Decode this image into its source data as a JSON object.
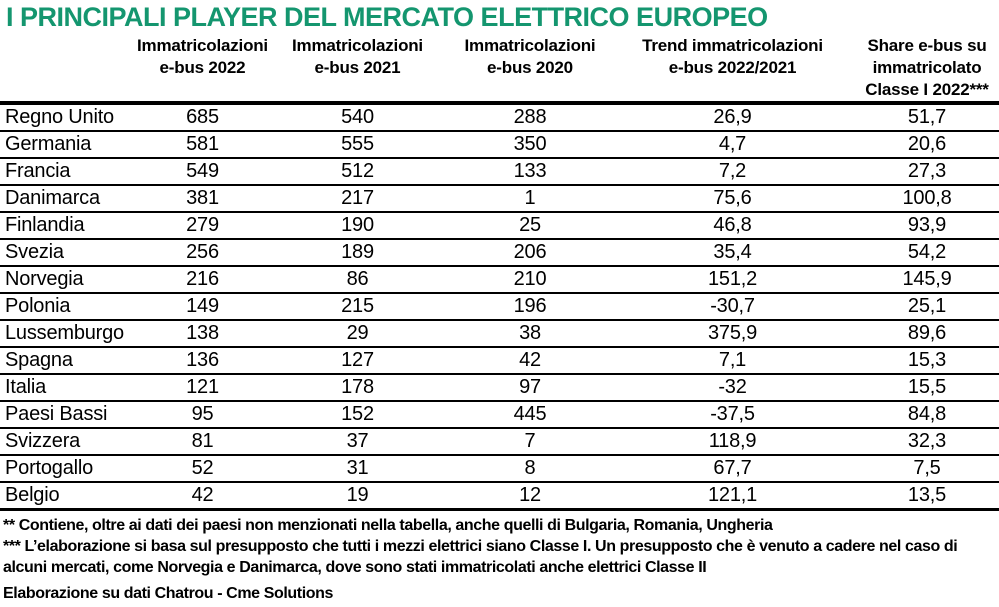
{
  "title": "I PRINCIPALI PLAYER DEL MERCATO ELETTRICO EUROPEO",
  "accent_color": "#14966f",
  "table": {
    "headers": [
      {
        "lines": []
      },
      {
        "lines": [
          "Immatricolazioni",
          "e-bus 2022"
        ]
      },
      {
        "lines": [
          "Immatricolazioni",
          "e-bus 2021"
        ]
      },
      {
        "lines": [
          "Immatricolazioni",
          "e-bus 2020"
        ]
      },
      {
        "lines": [
          "Trend immatricolazioni",
          "e-bus 2022/2021"
        ]
      },
      {
        "lines": [
          "Share e-bus su",
          "immatricolato",
          "Classe I 2022***"
        ]
      }
    ],
    "rows": [
      {
        "country": "Regno Unito",
        "values": [
          "685",
          "540",
          "288",
          "26,9",
          "51,7"
        ]
      },
      {
        "country": "Germania",
        "values": [
          "581",
          "555",
          "350",
          "4,7",
          "20,6"
        ]
      },
      {
        "country": "Francia",
        "values": [
          "549",
          "512",
          "133",
          "7,2",
          "27,3"
        ]
      },
      {
        "country": "Danimarca",
        "values": [
          "381",
          "217",
          "1",
          "75,6",
          "100,8"
        ]
      },
      {
        "country": "Finlandia",
        "values": [
          "279",
          "190",
          "25",
          "46,8",
          "93,9"
        ]
      },
      {
        "country": "Svezia",
        "values": [
          "256",
          "189",
          "206",
          "35,4",
          "54,2"
        ]
      },
      {
        "country": "Norvegia",
        "values": [
          "216",
          "86",
          "210",
          "151,2",
          "145,9"
        ]
      },
      {
        "country": "Polonia",
        "values": [
          "149",
          "215",
          "196",
          "-30,7",
          "25,1"
        ]
      },
      {
        "country": "Lussemburgo",
        "values": [
          "138",
          "29",
          "38",
          "375,9",
          "89,6"
        ]
      },
      {
        "country": "Spagna",
        "values": [
          "136",
          "127",
          "42",
          "7,1",
          "15,3"
        ]
      },
      {
        "country": "Italia",
        "values": [
          "121",
          "178",
          "97",
          "-32",
          "15,5"
        ]
      },
      {
        "country": "Paesi Bassi",
        "values": [
          "95",
          "152",
          "445",
          "-37,5",
          "84,8"
        ]
      },
      {
        "country": "Svizzera",
        "values": [
          "81",
          "37",
          "7",
          "118,9",
          "32,3"
        ]
      },
      {
        "country": "Portogallo",
        "values": [
          "52",
          "31",
          "8",
          "67,7",
          "7,5"
        ]
      },
      {
        "country": "Belgio",
        "values": [
          "42",
          "19",
          "12",
          "121,1",
          "13,5"
        ]
      }
    ]
  },
  "notes": [
    "** Contiene, oltre ai dati dei paesi non menzionati nella tabella, anche quelli di Bulgaria, Romania, Ungheria",
    "*** L’elaborazione si basa sul presupposto che tutti i mezzi elettrici siano Classe I. Un presupposto che è venuto a cadere nel caso di alcuni mercati, come Norvegia e Danimarca, dove sono stati immatricolati anche elettrici Classe II"
  ],
  "source": "Elaborazione su dati Chatrou - Cme Solutions",
  "chart_data": {
    "type": "table",
    "title": "I PRINCIPALI PLAYER DEL MERCATO ELETTRICO EUROPEO",
    "categories": [
      "Regno Unito",
      "Germania",
      "Francia",
      "Danimarca",
      "Finlandia",
      "Svezia",
      "Norvegia",
      "Polonia",
      "Lussemburgo",
      "Spagna",
      "Italia",
      "Paesi Bassi",
      "Svizzera",
      "Portogallo",
      "Belgio"
    ],
    "series": [
      {
        "name": "Immatricolazioni e-bus 2022",
        "values": [
          685,
          581,
          549,
          381,
          279,
          256,
          216,
          149,
          138,
          136,
          121,
          95,
          81,
          52,
          42
        ]
      },
      {
        "name": "Immatricolazioni e-bus 2021",
        "values": [
          540,
          555,
          512,
          217,
          190,
          189,
          86,
          215,
          29,
          127,
          178,
          152,
          37,
          31,
          19
        ]
      },
      {
        "name": "Immatricolazioni e-bus 2020",
        "values": [
          288,
          350,
          133,
          1,
          25,
          206,
          210,
          196,
          38,
          42,
          97,
          445,
          7,
          8,
          12
        ]
      },
      {
        "name": "Trend immatricolazioni e-bus 2022/2021",
        "values": [
          26.9,
          4.7,
          7.2,
          75.6,
          46.8,
          35.4,
          151.2,
          -30.7,
          375.9,
          7.1,
          -32,
          -37.5,
          118.9,
          67.7,
          121.1
        ]
      },
      {
        "name": "Share e-bus su immatricolato Classe I 2022***",
        "values": [
          51.7,
          20.6,
          27.3,
          100.8,
          93.9,
          54.2,
          145.9,
          25.1,
          89.6,
          15.3,
          15.5,
          84.8,
          32.3,
          7.5,
          13.5
        ]
      }
    ],
    "source": "Elaborazione su dati Chatrou - Cme Solutions"
  }
}
